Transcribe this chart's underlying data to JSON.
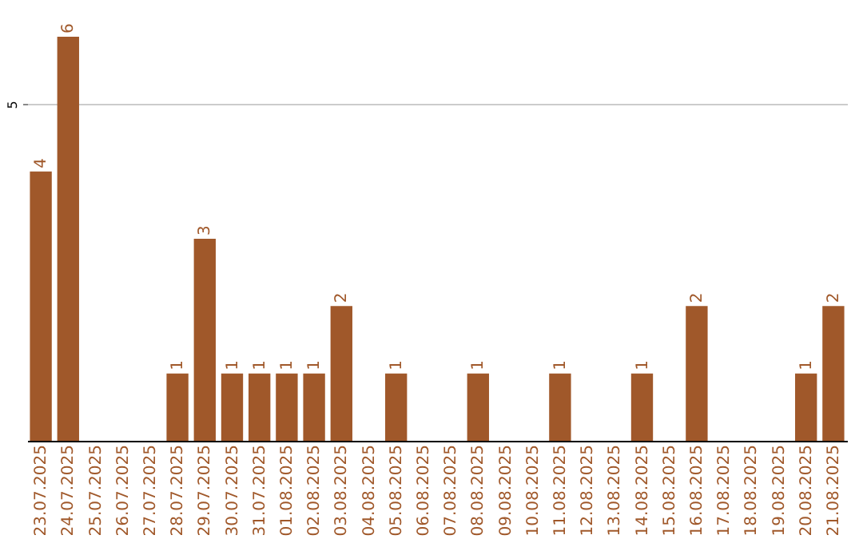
{
  "chart_data": {
    "type": "bar",
    "categories": [
      "23.07.2025",
      "24.07.2025",
      "25.07.2025",
      "26.07.2025",
      "27.07.2025",
      "28.07.2025",
      "29.07.2025",
      "30.07.2025",
      "31.07.2025",
      "01.08.2025",
      "02.08.2025",
      "03.08.2025",
      "04.08.2025",
      "05.08.2025",
      "06.08.2025",
      "07.08.2025",
      "08.08.2025",
      "09.08.2025",
      "10.08.2025",
      "11.08.2025",
      "12.08.2025",
      "13.08.2025",
      "14.08.2025",
      "15.08.2025",
      "16.08.2025",
      "17.08.2025",
      "18.08.2025",
      "19.08.2025",
      "20.08.2025",
      "21.08.2025"
    ],
    "values": [
      4,
      6,
      0,
      0,
      0,
      1,
      3,
      1,
      1,
      1,
      1,
      2,
      0,
      1,
      0,
      0,
      1,
      0,
      0,
      1,
      0,
      0,
      1,
      0,
      2,
      0,
      0,
      0,
      1,
      2
    ],
    "value_labels": [
      "4",
      "6",
      null,
      null,
      null,
      "1",
      "3",
      "1",
      "1",
      "1",
      "1",
      "2",
      null,
      "1",
      null,
      null,
      "1",
      null,
      null,
      "1",
      null,
      null,
      "1",
      null,
      "2",
      null,
      null,
      null,
      "1",
      "2"
    ],
    "color": "#a0582a",
    "ylim": [
      0,
      6
    ],
    "yticks": [
      5
    ],
    "grid": "y"
  }
}
